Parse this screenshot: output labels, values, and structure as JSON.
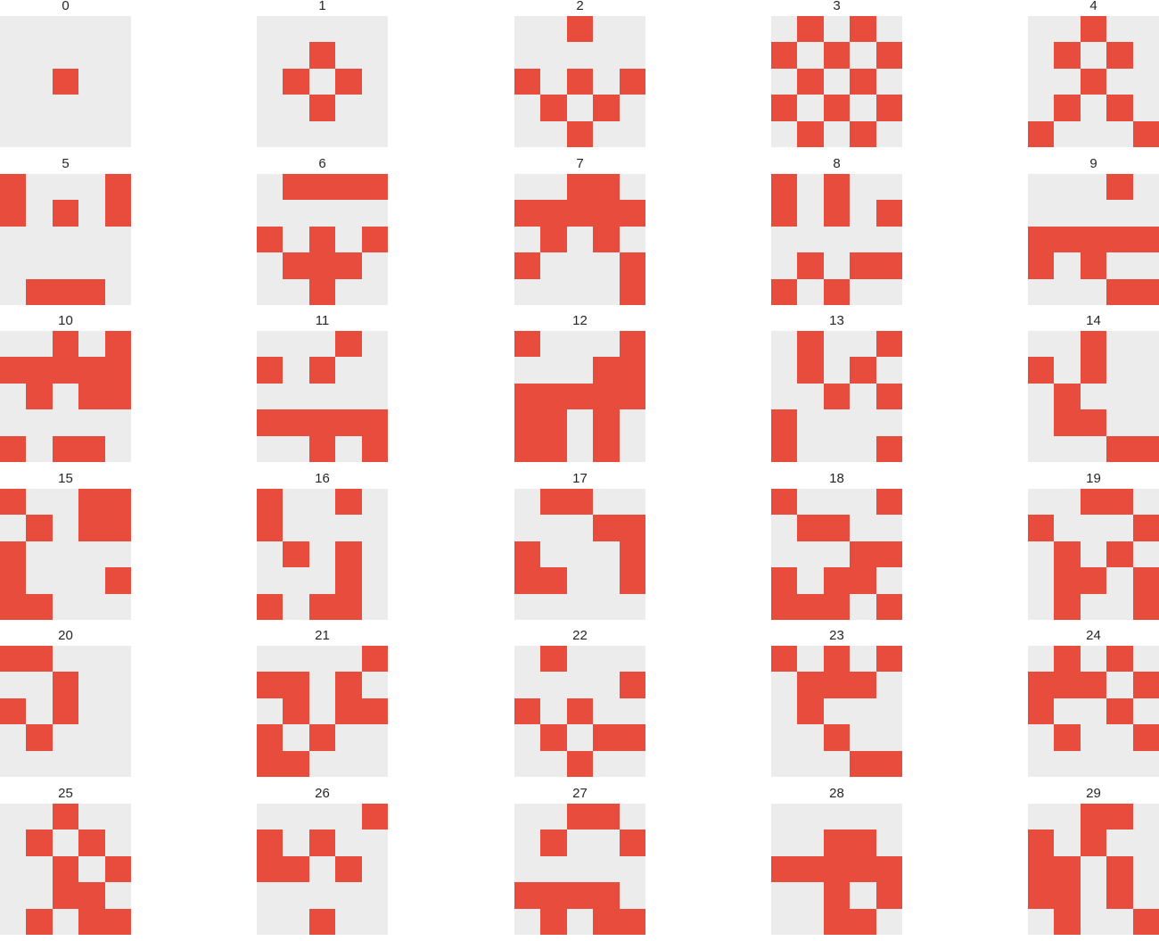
{
  "chart_data": {
    "type": "heatmap",
    "grid_layout": {
      "rows": 6,
      "cols": 5
    },
    "cell_colors": {
      "off": "#ececec",
      "on": "#e74c3c"
    },
    "titles_color": "#262626",
    "panels": [
      {
        "title": "0",
        "matrix": [
          [
            0,
            0,
            0,
            0,
            0
          ],
          [
            0,
            0,
            0,
            0,
            0
          ],
          [
            0,
            0,
            1,
            0,
            0
          ],
          [
            0,
            0,
            0,
            0,
            0
          ],
          [
            0,
            0,
            0,
            0,
            0
          ]
        ]
      },
      {
        "title": "1",
        "matrix": [
          [
            0,
            0,
            0,
            0,
            0
          ],
          [
            0,
            0,
            1,
            0,
            0
          ],
          [
            0,
            1,
            0,
            1,
            0
          ],
          [
            0,
            0,
            1,
            0,
            0
          ],
          [
            0,
            0,
            0,
            0,
            0
          ]
        ]
      },
      {
        "title": "2",
        "matrix": [
          [
            0,
            0,
            1,
            0,
            0
          ],
          [
            0,
            0,
            0,
            0,
            0
          ],
          [
            1,
            0,
            1,
            0,
            1
          ],
          [
            0,
            1,
            0,
            1,
            0
          ],
          [
            0,
            0,
            1,
            0,
            0
          ]
        ]
      },
      {
        "title": "3",
        "matrix": [
          [
            0,
            1,
            0,
            1,
            0
          ],
          [
            1,
            0,
            1,
            0,
            1
          ],
          [
            0,
            1,
            0,
            1,
            0
          ],
          [
            1,
            0,
            1,
            0,
            1
          ],
          [
            0,
            1,
            0,
            1,
            0
          ]
        ]
      },
      {
        "title": "4",
        "matrix": [
          [
            0,
            0,
            1,
            0,
            0
          ],
          [
            0,
            1,
            0,
            1,
            0
          ],
          [
            0,
            0,
            1,
            0,
            0
          ],
          [
            0,
            1,
            0,
            1,
            0
          ],
          [
            1,
            0,
            0,
            0,
            1
          ]
        ]
      },
      {
        "title": "5",
        "matrix": [
          [
            1,
            0,
            0,
            0,
            1
          ],
          [
            1,
            0,
            1,
            0,
            1
          ],
          [
            0,
            0,
            0,
            0,
            0
          ],
          [
            0,
            0,
            0,
            0,
            0
          ],
          [
            0,
            1,
            1,
            1,
            0
          ]
        ]
      },
      {
        "title": "6",
        "matrix": [
          [
            0,
            1,
            1,
            1,
            1
          ],
          [
            0,
            0,
            0,
            0,
            0
          ],
          [
            1,
            0,
            1,
            0,
            1
          ],
          [
            0,
            1,
            1,
            1,
            0
          ],
          [
            0,
            0,
            1,
            0,
            0
          ]
        ]
      },
      {
        "title": "7",
        "matrix": [
          [
            0,
            0,
            1,
            1,
            0
          ],
          [
            1,
            1,
            1,
            1,
            1
          ],
          [
            0,
            1,
            0,
            1,
            0
          ],
          [
            1,
            0,
            0,
            0,
            1
          ],
          [
            0,
            0,
            0,
            0,
            1
          ]
        ]
      },
      {
        "title": "8",
        "matrix": [
          [
            1,
            0,
            1,
            0,
            0
          ],
          [
            1,
            0,
            1,
            0,
            1
          ],
          [
            0,
            0,
            0,
            0,
            0
          ],
          [
            0,
            1,
            0,
            1,
            1
          ],
          [
            1,
            0,
            1,
            0,
            0
          ]
        ]
      },
      {
        "title": "9",
        "matrix": [
          [
            0,
            0,
            0,
            1,
            0
          ],
          [
            0,
            0,
            0,
            0,
            0
          ],
          [
            1,
            1,
            1,
            1,
            1
          ],
          [
            1,
            0,
            1,
            0,
            0
          ],
          [
            0,
            0,
            0,
            1,
            1
          ]
        ]
      },
      {
        "title": "10",
        "matrix": [
          [
            0,
            0,
            1,
            0,
            1
          ],
          [
            1,
            1,
            1,
            1,
            1
          ],
          [
            0,
            1,
            0,
            1,
            1
          ],
          [
            0,
            0,
            0,
            0,
            0
          ],
          [
            1,
            0,
            1,
            1,
            0
          ]
        ]
      },
      {
        "title": "11",
        "matrix": [
          [
            0,
            0,
            0,
            1,
            0
          ],
          [
            1,
            0,
            1,
            0,
            0
          ],
          [
            0,
            0,
            0,
            0,
            0
          ],
          [
            1,
            1,
            1,
            1,
            1
          ],
          [
            0,
            0,
            1,
            0,
            1
          ]
        ]
      },
      {
        "title": "12",
        "matrix": [
          [
            1,
            0,
            0,
            0,
            1
          ],
          [
            0,
            0,
            0,
            1,
            1
          ],
          [
            1,
            1,
            1,
            1,
            1
          ],
          [
            1,
            1,
            0,
            1,
            0
          ],
          [
            1,
            1,
            0,
            1,
            0
          ]
        ]
      },
      {
        "title": "13",
        "matrix": [
          [
            0,
            1,
            0,
            0,
            1
          ],
          [
            0,
            1,
            0,
            1,
            0
          ],
          [
            0,
            0,
            1,
            0,
            1
          ],
          [
            1,
            0,
            0,
            0,
            0
          ],
          [
            1,
            0,
            0,
            0,
            1
          ]
        ]
      },
      {
        "title": "14",
        "matrix": [
          [
            0,
            0,
            1,
            0,
            0
          ],
          [
            1,
            0,
            1,
            0,
            0
          ],
          [
            0,
            1,
            0,
            0,
            0
          ],
          [
            0,
            1,
            1,
            0,
            0
          ],
          [
            0,
            0,
            0,
            1,
            1
          ]
        ]
      },
      {
        "title": "15",
        "matrix": [
          [
            1,
            0,
            0,
            1,
            1
          ],
          [
            0,
            1,
            0,
            1,
            1
          ],
          [
            1,
            0,
            0,
            0,
            0
          ],
          [
            1,
            0,
            0,
            0,
            1
          ],
          [
            1,
            1,
            0,
            0,
            0
          ]
        ]
      },
      {
        "title": "16",
        "matrix": [
          [
            1,
            0,
            0,
            1,
            0
          ],
          [
            1,
            0,
            0,
            0,
            0
          ],
          [
            0,
            1,
            0,
            1,
            0
          ],
          [
            0,
            0,
            0,
            1,
            0
          ],
          [
            1,
            0,
            1,
            1,
            0
          ]
        ]
      },
      {
        "title": "17",
        "matrix": [
          [
            0,
            1,
            1,
            0,
            0
          ],
          [
            0,
            0,
            0,
            1,
            1
          ],
          [
            1,
            0,
            0,
            0,
            1
          ],
          [
            1,
            1,
            0,
            0,
            1
          ],
          [
            0,
            0,
            0,
            0,
            0
          ]
        ]
      },
      {
        "title": "18",
        "matrix": [
          [
            1,
            0,
            0,
            0,
            1
          ],
          [
            0,
            1,
            1,
            0,
            0
          ],
          [
            0,
            0,
            0,
            1,
            1
          ],
          [
            1,
            0,
            1,
            1,
            0
          ],
          [
            1,
            1,
            1,
            0,
            1
          ]
        ]
      },
      {
        "title": "19",
        "matrix": [
          [
            0,
            0,
            1,
            1,
            0
          ],
          [
            1,
            0,
            0,
            0,
            1
          ],
          [
            0,
            1,
            0,
            1,
            0
          ],
          [
            0,
            1,
            1,
            0,
            1
          ],
          [
            0,
            1,
            0,
            0,
            1
          ]
        ]
      },
      {
        "title": "20",
        "matrix": [
          [
            1,
            1,
            0,
            0,
            0
          ],
          [
            0,
            0,
            1,
            0,
            0
          ],
          [
            1,
            0,
            1,
            0,
            0
          ],
          [
            0,
            1,
            0,
            0,
            0
          ],
          [
            0,
            0,
            0,
            0,
            0
          ]
        ]
      },
      {
        "title": "21",
        "matrix": [
          [
            0,
            0,
            0,
            0,
            1
          ],
          [
            1,
            1,
            0,
            1,
            0
          ],
          [
            0,
            1,
            0,
            1,
            1
          ],
          [
            1,
            0,
            1,
            0,
            0
          ],
          [
            1,
            1,
            0,
            0,
            0
          ]
        ]
      },
      {
        "title": "22",
        "matrix": [
          [
            0,
            1,
            0,
            0,
            0
          ],
          [
            0,
            0,
            0,
            0,
            1
          ],
          [
            1,
            0,
            1,
            0,
            0
          ],
          [
            0,
            1,
            0,
            1,
            1
          ],
          [
            0,
            0,
            1,
            0,
            0
          ]
        ]
      },
      {
        "title": "23",
        "matrix": [
          [
            1,
            0,
            1,
            0,
            1
          ],
          [
            0,
            1,
            1,
            1,
            0
          ],
          [
            0,
            1,
            0,
            0,
            0
          ],
          [
            0,
            0,
            1,
            0,
            0
          ],
          [
            0,
            0,
            0,
            1,
            1
          ]
        ]
      },
      {
        "title": "24",
        "matrix": [
          [
            0,
            1,
            0,
            1,
            0
          ],
          [
            1,
            1,
            1,
            0,
            1
          ],
          [
            1,
            0,
            0,
            1,
            0
          ],
          [
            0,
            1,
            0,
            0,
            1
          ],
          [
            0,
            0,
            0,
            0,
            0
          ]
        ]
      },
      {
        "title": "25",
        "matrix": [
          [
            0,
            0,
            1,
            0,
            0
          ],
          [
            0,
            1,
            0,
            1,
            0
          ],
          [
            0,
            0,
            1,
            0,
            1
          ],
          [
            0,
            0,
            1,
            1,
            0
          ],
          [
            0,
            1,
            0,
            1,
            1
          ]
        ]
      },
      {
        "title": "26",
        "matrix": [
          [
            0,
            0,
            0,
            0,
            1
          ],
          [
            1,
            0,
            1,
            0,
            0
          ],
          [
            1,
            1,
            0,
            1,
            0
          ],
          [
            0,
            0,
            0,
            0,
            0
          ],
          [
            0,
            0,
            1,
            0,
            0
          ]
        ]
      },
      {
        "title": "27",
        "matrix": [
          [
            0,
            0,
            1,
            1,
            0
          ],
          [
            0,
            1,
            0,
            0,
            1
          ],
          [
            0,
            0,
            0,
            0,
            0
          ],
          [
            1,
            1,
            1,
            1,
            0
          ],
          [
            0,
            1,
            0,
            1,
            1
          ]
        ]
      },
      {
        "title": "28",
        "matrix": [
          [
            0,
            0,
            0,
            0,
            0
          ],
          [
            0,
            0,
            1,
            1,
            0
          ],
          [
            1,
            1,
            1,
            1,
            1
          ],
          [
            0,
            0,
            1,
            0,
            1
          ],
          [
            0,
            0,
            1,
            1,
            0
          ]
        ]
      },
      {
        "title": "29",
        "matrix": [
          [
            0,
            0,
            1,
            1,
            0
          ],
          [
            1,
            0,
            1,
            0,
            0
          ],
          [
            1,
            1,
            0,
            1,
            0
          ],
          [
            1,
            1,
            0,
            1,
            0
          ],
          [
            0,
            1,
            0,
            0,
            1
          ]
        ]
      }
    ]
  }
}
